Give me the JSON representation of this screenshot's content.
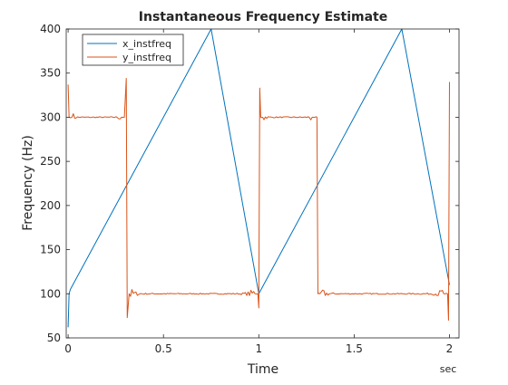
{
  "chart_data": {
    "type": "line",
    "title": "Instantaneous Frequency Estimate",
    "xlabel": "Time",
    "ylabel": "Frequency (Hz)",
    "x_unit_label": "sec",
    "xlim": [
      -0.01,
      2.05
    ],
    "ylim": [
      50,
      400
    ],
    "x_ticks": [
      0,
      0.5,
      1,
      1.5,
      2
    ],
    "x_tick_labels": [
      "0",
      "0.5",
      "1",
      "1.5",
      "2"
    ],
    "y_ticks": [
      50,
      100,
      150,
      200,
      250,
      300,
      350,
      400
    ],
    "y_tick_labels": [
      "50",
      "100",
      "150",
      "200",
      "250",
      "300",
      "350",
      "400"
    ],
    "grid": false,
    "legend_position": "top-left",
    "series": [
      {
        "name": "x_instfreq",
        "color": "#0072BD",
        "x": [
          0.0,
          0.005,
          0.012,
          0.75,
          1.0,
          1.75,
          2.0
        ],
        "y": [
          62,
          100,
          105,
          400,
          100,
          400,
          110
        ]
      },
      {
        "name": "y_instfreq",
        "color": "#D95319",
        "x": [
          0.0,
          0.005,
          0.02,
          0.28,
          0.295,
          0.305,
          0.31,
          0.32,
          0.98,
          0.995,
          1.0,
          1.005,
          1.01,
          1.02,
          1.28,
          1.295,
          1.305,
          1.31,
          1.32,
          1.97,
          1.99,
          1.995,
          2.0
        ],
        "y": [
          337,
          300,
          300,
          300,
          300,
          344,
          73,
          100,
          100,
          100,
          84,
          333,
          300,
          300,
          300,
          300,
          300,
          100,
          100,
          100,
          100,
          70,
          340
        ]
      }
    ]
  }
}
